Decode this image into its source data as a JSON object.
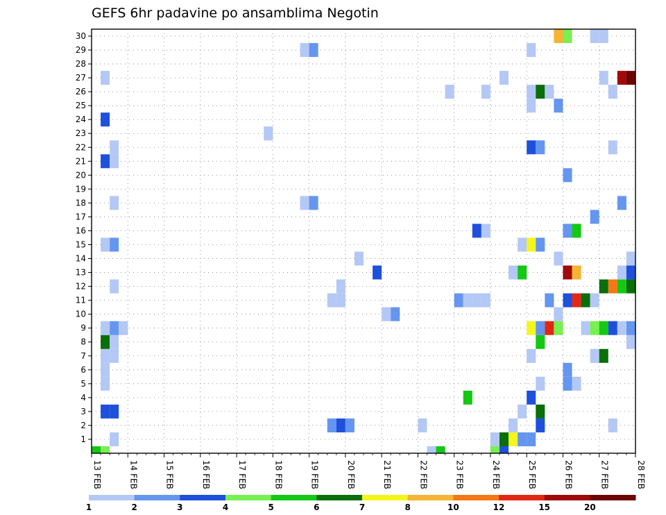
{
  "chart_data": {
    "type": "heatmap",
    "title": "GEFS 6hr padavine po ansamblima Negotin",
    "xlabel": "",
    "ylabel": "",
    "x_tick_labels": [
      "13 FEB",
      "14 FEB",
      "15 FEB",
      "16 FEB",
      "17 FEB",
      "18 FEB",
      "19 FEB",
      "20 FEB",
      "21 FEB",
      "22 FEB",
      "23 FEB",
      "24 FEB",
      "25 FEB",
      "26 FEB",
      "27 FEB",
      "28 FEB"
    ],
    "y_tick_labels": [
      "1",
      "2",
      "3",
      "4",
      "5",
      "6",
      "7",
      "8",
      "9",
      "10",
      "11",
      "12",
      "13",
      "14",
      "15",
      "16",
      "17",
      "18",
      "19",
      "20",
      "21",
      "22",
      "23",
      "24",
      "25",
      "26",
      "27",
      "28",
      "29",
      "30"
    ],
    "x_range_days": [
      13,
      28
    ],
    "y_range": [
      0,
      30
    ],
    "grid": "dotted",
    "legend": {
      "position": "bottom",
      "levels": [
        "1",
        "2",
        "3",
        "4",
        "5",
        "6",
        "7",
        "8",
        "10",
        "12",
        "15",
        "20"
      ],
      "colors": [
        "#b4c8f5",
        "#6496f0",
        "#1e50dc",
        "#78f050",
        "#14c814",
        "#0a6e0a",
        "#f5f51e",
        "#f5b432",
        "#f57814",
        "#e12814",
        "#a00a0a",
        "#6e0505"
      ]
    },
    "cells_note": "each cell: [day (13-28, fractional at 6h steps), member (0-30), level index 1-12]",
    "cells": [
      [
        13.125,
        0,
        5
      ],
      [
        13.375,
        0,
        4
      ],
      [
        13.375,
        3,
        3
      ],
      [
        13.375,
        5,
        1
      ],
      [
        13.375,
        6,
        1
      ],
      [
        13.375,
        7,
        1
      ],
      [
        13.375,
        8,
        6
      ],
      [
        13.375,
        9,
        1
      ],
      [
        13.375,
        15,
        1
      ],
      [
        13.375,
        21,
        3
      ],
      [
        13.375,
        24,
        3
      ],
      [
        13.375,
        27,
        1
      ],
      [
        13.625,
        1,
        1
      ],
      [
        13.625,
        3,
        3
      ],
      [
        13.625,
        7,
        1
      ],
      [
        13.625,
        8,
        1
      ],
      [
        13.625,
        9,
        2
      ],
      [
        13.625,
        12,
        1
      ],
      [
        13.625,
        15,
        2
      ],
      [
        13.625,
        18,
        1
      ],
      [
        13.625,
        21,
        1
      ],
      [
        13.625,
        22,
        1
      ],
      [
        13.875,
        9,
        1
      ],
      [
        17.875,
        23,
        1
      ],
      [
        18.875,
        18,
        1
      ],
      [
        18.875,
        29,
        1
      ],
      [
        19.125,
        18,
        2
      ],
      [
        19.125,
        29,
        2
      ],
      [
        19.625,
        2,
        2
      ],
      [
        19.625,
        11,
        1
      ],
      [
        19.875,
        2,
        3
      ],
      [
        19.875,
        11,
        1
      ],
      [
        19.875,
        12,
        1
      ],
      [
        20.125,
        2,
        2
      ],
      [
        20.375,
        14,
        1
      ],
      [
        20.875,
        13,
        3
      ],
      [
        21.125,
        10,
        1
      ],
      [
        21.375,
        10,
        2
      ],
      [
        22.125,
        2,
        1
      ],
      [
        22.375,
        0,
        1
      ],
      [
        22.625,
        0,
        5
      ],
      [
        22.875,
        26,
        1
      ],
      [
        23.125,
        11,
        2
      ],
      [
        23.375,
        4,
        5
      ],
      [
        23.375,
        11,
        1
      ],
      [
        23.625,
        11,
        1
      ],
      [
        23.875,
        11,
        1
      ],
      [
        23.625,
        16,
        3
      ],
      [
        23.875,
        16,
        1
      ],
      [
        23.875,
        26,
        1
      ],
      [
        24.125,
        0,
        4
      ],
      [
        24.125,
        1,
        1
      ],
      [
        24.375,
        1,
        6
      ],
      [
        24.375,
        0,
        3
      ],
      [
        24.375,
        27,
        1
      ],
      [
        24.625,
        1,
        7
      ],
      [
        24.625,
        2,
        1
      ],
      [
        24.625,
        13,
        1
      ],
      [
        24.875,
        1,
        2
      ],
      [
        24.875,
        3,
        1
      ],
      [
        24.875,
        13,
        5
      ],
      [
        24.875,
        15,
        1
      ],
      [
        25.125,
        1,
        2
      ],
      [
        25.125,
        4,
        3
      ],
      [
        25.125,
        7,
        1
      ],
      [
        25.125,
        9,
        7
      ],
      [
        25.125,
        15,
        7
      ],
      [
        25.125,
        22,
        3
      ],
      [
        25.125,
        25,
        1
      ],
      [
        25.125,
        26,
        1
      ],
      [
        25.125,
        29,
        1
      ],
      [
        25.375,
        2,
        3
      ],
      [
        25.375,
        3,
        6
      ],
      [
        25.375,
        5,
        1
      ],
      [
        25.375,
        8,
        5
      ],
      [
        25.375,
        9,
        2
      ],
      [
        25.375,
        15,
        2
      ],
      [
        25.375,
        22,
        2
      ],
      [
        25.375,
        26,
        6
      ],
      [
        25.625,
        9,
        10
      ],
      [
        25.625,
        11,
        2
      ],
      [
        25.625,
        26,
        1
      ],
      [
        25.875,
        9,
        4
      ],
      [
        25.875,
        10,
        1
      ],
      [
        25.875,
        14,
        1
      ],
      [
        25.875,
        25,
        2
      ],
      [
        25.875,
        30,
        8
      ],
      [
        26.125,
        5,
        2
      ],
      [
        26.125,
        6,
        2
      ],
      [
        26.125,
        11,
        3
      ],
      [
        26.125,
        13,
        11
      ],
      [
        26.125,
        16,
        2
      ],
      [
        26.125,
        20,
        2
      ],
      [
        26.125,
        30,
        4
      ],
      [
        26.375,
        5,
        1
      ],
      [
        26.375,
        11,
        10
      ],
      [
        26.375,
        13,
        8
      ],
      [
        26.375,
        16,
        5
      ],
      [
        26.625,
        11,
        6
      ],
      [
        26.625,
        9,
        1
      ],
      [
        26.875,
        7,
        1
      ],
      [
        26.875,
        9,
        4
      ],
      [
        26.875,
        11,
        1
      ],
      [
        26.875,
        17,
        2
      ],
      [
        26.875,
        30,
        1
      ],
      [
        27.125,
        7,
        6
      ],
      [
        27.125,
        9,
        5
      ],
      [
        27.125,
        12,
        6
      ],
      [
        27.125,
        27,
        1
      ],
      [
        27.125,
        30,
        1
      ],
      [
        27.375,
        9,
        3
      ],
      [
        27.375,
        12,
        9
      ],
      [
        27.375,
        2,
        1
      ],
      [
        27.375,
        22,
        1
      ],
      [
        27.375,
        26,
        1
      ],
      [
        27.625,
        9,
        1
      ],
      [
        27.625,
        12,
        5
      ],
      [
        27.625,
        13,
        1
      ],
      [
        27.625,
        18,
        2
      ],
      [
        27.625,
        27,
        11
      ],
      [
        27.875,
        8,
        1
      ],
      [
        27.875,
        9,
        2
      ],
      [
        27.875,
        12,
        6
      ],
      [
        27.875,
        13,
        3
      ],
      [
        27.875,
        14,
        1
      ],
      [
        27.875,
        27,
        12
      ]
    ]
  }
}
